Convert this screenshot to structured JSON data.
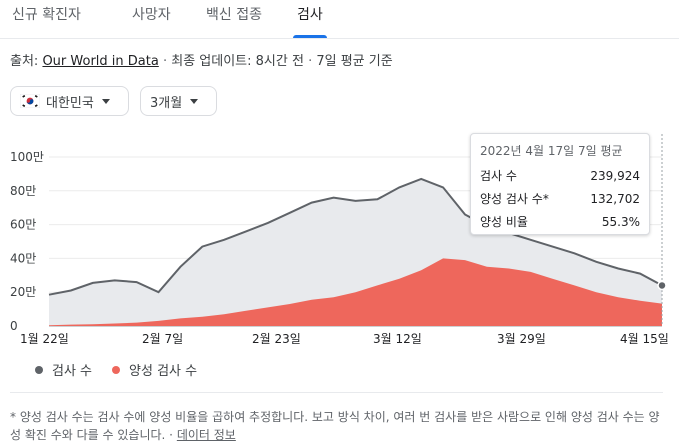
{
  "tabs": [
    {
      "label": "신규 확진자"
    },
    {
      "label": "사망자"
    },
    {
      "label": "백신 접종"
    },
    {
      "label": "검사"
    }
  ],
  "source": {
    "prefix": "출처:",
    "link": "Our World in Data",
    "sep1": "·",
    "updated": "최종 업데이트: 8시간 전",
    "sep2": "·",
    "basis": "7일 평균 기준"
  },
  "filters": {
    "country": "대한민국",
    "period": "3개월"
  },
  "colors": {
    "tests": "#5f6368",
    "tests_fill": "#e8eaed",
    "positive": "#ee675c",
    "accent": "#1a73e8"
  },
  "chart_data": {
    "type": "area",
    "y_ticks": [
      "100만",
      "80만",
      "60만",
      "40만",
      "20만",
      "0"
    ],
    "ylim": [
      0,
      1000000
    ],
    "x_ticks": [
      "1월 22일",
      "2월 7일",
      "2월 23일",
      "3월 12일",
      "3월 29일",
      "4월 15일"
    ],
    "x_range": [
      "2022-01-22",
      "2022-04-17"
    ],
    "x": [
      "01-22",
      "01-25",
      "01-28",
      "01-31",
      "02-03",
      "02-06",
      "02-09",
      "02-12",
      "02-15",
      "02-18",
      "02-21",
      "02-24",
      "02-27",
      "03-02",
      "03-05",
      "03-08",
      "03-11",
      "03-14",
      "03-17",
      "03-20",
      "03-23",
      "03-26",
      "03-29",
      "04-01",
      "04-04",
      "04-07",
      "04-10",
      "04-13",
      "04-17"
    ],
    "series": [
      {
        "name": "검사 수",
        "values": [
          185000,
          210000,
          255000,
          270000,
          260000,
          200000,
          350000,
          470000,
          510000,
          560000,
          610000,
          670000,
          730000,
          760000,
          740000,
          750000,
          820000,
          870000,
          820000,
          660000,
          590000,
          550000,
          510000,
          470000,
          430000,
          380000,
          340000,
          310000,
          240000
        ]
      },
      {
        "name": "양성 검사 수",
        "values": [
          5000,
          8000,
          10000,
          15000,
          20000,
          30000,
          45000,
          55000,
          70000,
          90000,
          110000,
          130000,
          155000,
          170000,
          200000,
          240000,
          280000,
          330000,
          400000,
          390000,
          350000,
          340000,
          320000,
          280000,
          240000,
          200000,
          170000,
          150000,
          132702
        ]
      }
    ],
    "tooltip": {
      "title": "2022년 4월 17일 7일 평균",
      "rows": [
        {
          "label": "검사 수",
          "value": "239,924"
        },
        {
          "label": "양성 검사 수*",
          "value": "132,702"
        },
        {
          "label": "양성 비율",
          "value": "55.3%"
        }
      ]
    }
  },
  "legend": {
    "tests": "검사 수",
    "positive": "양성 검사 수"
  },
  "footnote": {
    "text": "* 양성 검사 수는 검사 수에 양성 비율을 곱하여 추정합니다. 보고 방식 차이, 여러 번 검사를 받은 사람으로 인해 양성 검사 수는 양성 확진 수와 다를 수 있습니다. ·",
    "link": "데이터 정보"
  }
}
